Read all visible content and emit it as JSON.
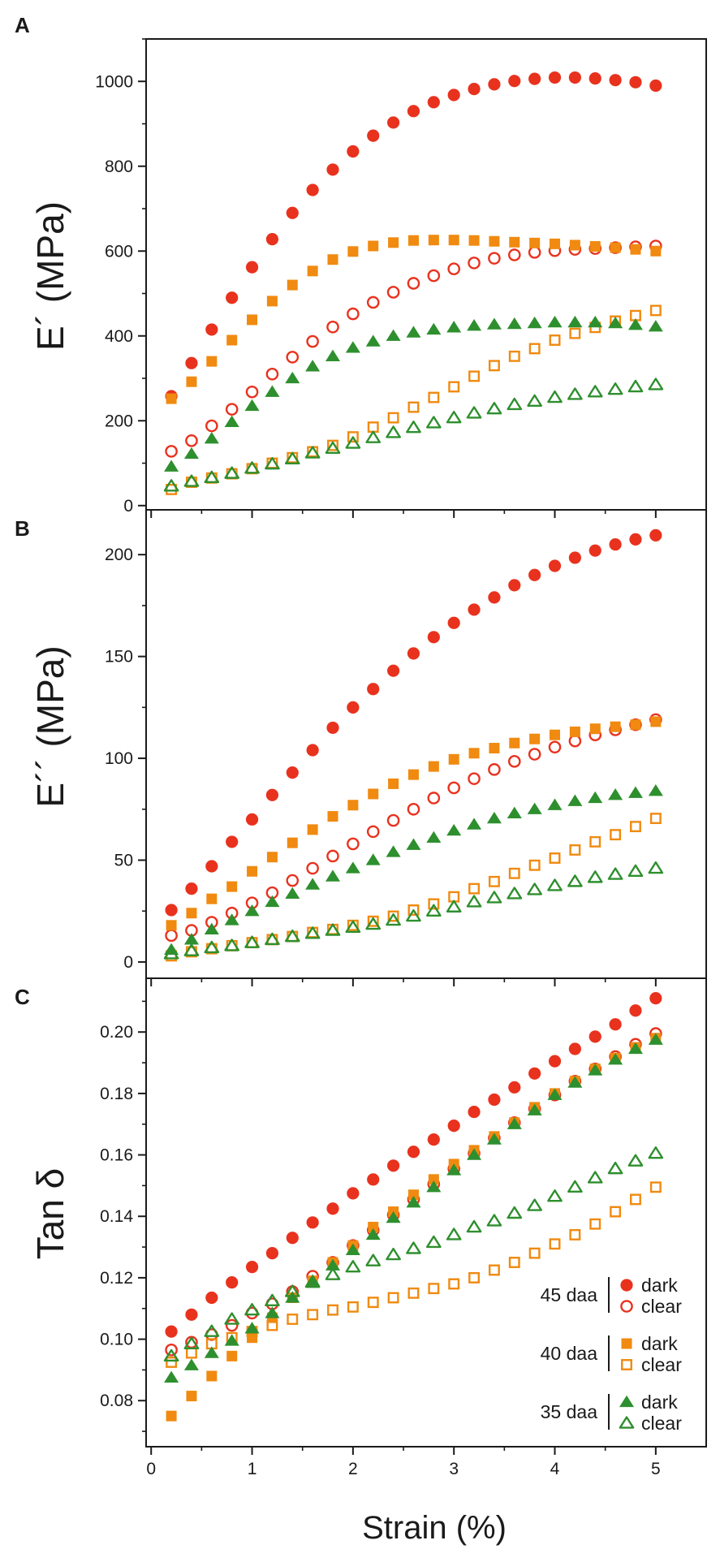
{
  "figure": {
    "x_axis": {
      "label": "Strain (%)",
      "range": [
        -0.05,
        5.5
      ],
      "ticks": [
        0,
        1,
        2,
        3,
        4,
        5
      ],
      "tick_labels": [
        "0",
        "1",
        "2",
        "3",
        "4",
        "5"
      ]
    },
    "colors": {
      "red": "#e8321e",
      "orange": "#f08a10",
      "green": "#2e8f2e",
      "axis": "#1a1a1a"
    },
    "legend": {
      "groups": [
        {
          "label": "45 daa",
          "color": "red",
          "marker": "circle",
          "entries": [
            "dark",
            "clear"
          ]
        },
        {
          "label": "40 daa",
          "color": "orange",
          "marker": "square",
          "entries": [
            "dark",
            "clear"
          ]
        },
        {
          "label": "35 daa",
          "color": "green",
          "marker": "triangle",
          "entries": [
            "dark",
            "clear"
          ]
        }
      ]
    }
  },
  "chart_data": [
    {
      "type": "scatter",
      "panel": "A",
      "ylabel": "E´ (MPa)",
      "ylim": [
        -10,
        1100
      ],
      "yticks": [
        0,
        200,
        400,
        600,
        800,
        1000
      ],
      "ytick_labels": [
        "0",
        "200",
        "400",
        "600",
        "800",
        "1000"
      ],
      "yminor": [
        100,
        300,
        500,
        700,
        900,
        1100
      ],
      "x": [
        0.2,
        0.4,
        0.6,
        0.8,
        1.0,
        1.2,
        1.4,
        1.6,
        1.8,
        2.0,
        2.2,
        2.4,
        2.6,
        2.8,
        3.0,
        3.2,
        3.4,
        3.6,
        3.8,
        4.0,
        4.2,
        4.4,
        4.6,
        4.8,
        5.0
      ],
      "series": [
        {
          "name": "45 daa dark",
          "color": "red",
          "marker": "circle",
          "filled": true,
          "values": [
            258,
            336,
            415,
            490,
            562,
            628,
            690,
            744,
            792,
            835,
            872,
            903,
            930,
            951,
            968,
            982,
            993,
            1001,
            1006,
            1009,
            1009,
            1007,
            1003,
            998,
            990
          ]
        },
        {
          "name": "45 daa clear",
          "color": "red",
          "marker": "circle",
          "filled": false,
          "values": [
            128,
            153,
            188,
            227,
            268,
            310,
            350,
            387,
            421,
            452,
            479,
            503,
            524,
            542,
            558,
            572,
            583,
            591,
            597,
            601,
            604,
            606,
            608,
            610,
            612
          ]
        },
        {
          "name": "40 daa dark",
          "color": "orange",
          "marker": "square",
          "filled": true,
          "values": [
            252,
            292,
            340,
            390,
            438,
            482,
            520,
            553,
            580,
            599,
            612,
            620,
            625,
            626,
            626,
            625,
            623,
            621,
            619,
            617,
            614,
            611,
            608,
            604,
            600
          ]
        },
        {
          "name": "40 daa clear",
          "color": "orange",
          "marker": "square",
          "filled": false,
          "values": [
            38,
            55,
            65,
            75,
            87,
            100,
            113,
            127,
            142,
            162,
            185,
            207,
            232,
            255,
            280,
            305,
            330,
            352,
            370,
            390,
            406,
            420,
            435,
            448,
            460
          ]
        },
        {
          "name": "35 daa dark",
          "color": "green",
          "marker": "triangle",
          "filled": true,
          "values": [
            92,
            122,
            158,
            197,
            235,
            268,
            300,
            328,
            352,
            372,
            387,
            400,
            408,
            415,
            420,
            424,
            427,
            428,
            430,
            432,
            432,
            432,
            430,
            426,
            422
          ]
        },
        {
          "name": "35 daa clear",
          "color": "green",
          "marker": "triangle",
          "filled": false,
          "values": [
            46,
            57,
            66,
            76,
            88,
            98,
            110,
            124,
            135,
            147,
            160,
            172,
            184,
            195,
            207,
            218,
            228,
            238,
            246,
            255,
            262,
            268,
            274,
            280,
            285
          ]
        }
      ]
    },
    {
      "type": "scatter",
      "panel": "B",
      "ylabel": "E´´ (MPa)",
      "ylim": [
        -8,
        222
      ],
      "yticks": [
        0,
        50,
        100,
        150,
        200
      ],
      "ytick_labels": [
        "0",
        "50",
        "100",
        "150",
        "200"
      ],
      "yminor": [
        25,
        75,
        125,
        175
      ],
      "x": [
        0.2,
        0.4,
        0.6,
        0.8,
        1.0,
        1.2,
        1.4,
        1.6,
        1.8,
        2.0,
        2.2,
        2.4,
        2.6,
        2.8,
        3.0,
        3.2,
        3.4,
        3.6,
        3.8,
        4.0,
        4.2,
        4.4,
        4.6,
        4.8,
        5.0
      ],
      "series": [
        {
          "name": "45 daa dark",
          "color": "red",
          "marker": "circle",
          "filled": true,
          "values": [
            25.5,
            36,
            47,
            59,
            70,
            82,
            93,
            104,
            115,
            125,
            134,
            143,
            151.5,
            159.5,
            166.5,
            173,
            179,
            185,
            190,
            194.5,
            198.5,
            202,
            205,
            207.5,
            209.5
          ]
        },
        {
          "name": "45 daa clear",
          "color": "red",
          "marker": "circle",
          "filled": false,
          "values": [
            13,
            15.5,
            19.5,
            24,
            29,
            34,
            40,
            46,
            52,
            58,
            64,
            69.5,
            75,
            80.5,
            85.5,
            90,
            94.5,
            98.5,
            102,
            105.5,
            108.5,
            111.5,
            114,
            116.5,
            119
          ]
        },
        {
          "name": "40 daa dark",
          "color": "orange",
          "marker": "square",
          "filled": true,
          "values": [
            18,
            24,
            31,
            37,
            44.5,
            51.5,
            58.5,
            65,
            71.5,
            77,
            82.5,
            87.5,
            92,
            96,
            99.5,
            102.5,
            105,
            107.5,
            109.5,
            111.5,
            113,
            114.5,
            115.5,
            116.5,
            118
          ]
        },
        {
          "name": "40 daa clear",
          "color": "orange",
          "marker": "square",
          "filled": false,
          "values": [
            3,
            5,
            6.5,
            8,
            9.5,
            11,
            12.5,
            14.5,
            16,
            18,
            20,
            22.5,
            25.5,
            28.5,
            32,
            36,
            39.5,
            43.5,
            47.5,
            51,
            55,
            59,
            62.5,
            66.5,
            70.5
          ]
        },
        {
          "name": "35 daa dark",
          "color": "green",
          "marker": "triangle",
          "filled": true,
          "values": [
            6,
            11,
            16,
            20.5,
            25,
            29.5,
            33.5,
            38,
            42,
            46,
            50,
            54,
            57.5,
            61,
            64.5,
            67.5,
            70.5,
            73,
            75,
            77,
            79,
            80.5,
            82,
            83,
            84
          ]
        },
        {
          "name": "35 daa clear",
          "color": "green",
          "marker": "triangle",
          "filled": false,
          "values": [
            4,
            5.5,
            7,
            8,
            9.5,
            11,
            12.5,
            14,
            15.5,
            17,
            18.5,
            20.5,
            22.5,
            25,
            27,
            29.5,
            31.5,
            33.5,
            35.5,
            37.5,
            39.5,
            41.5,
            43,
            44.5,
            46
          ]
        }
      ]
    },
    {
      "type": "scatter",
      "panel": "C",
      "ylabel": "Tan δ",
      "ylim": [
        0.065,
        0.2175
      ],
      "yticks": [
        0.08,
        0.1,
        0.12,
        0.14,
        0.16,
        0.18,
        0.2
      ],
      "ytick_labels": [
        "0.08",
        "0.10",
        "0.12",
        "0.14",
        "0.16",
        "0.18",
        "0.20"
      ],
      "yminor": [
        0.07,
        0.09,
        0.11,
        0.13,
        0.15,
        0.17,
        0.19,
        0.21
      ],
      "x": [
        0.2,
        0.4,
        0.6,
        0.8,
        1.0,
        1.2,
        1.4,
        1.6,
        1.8,
        2.0,
        2.2,
        2.4,
        2.6,
        2.8,
        3.0,
        3.2,
        3.4,
        3.6,
        3.8,
        4.0,
        4.2,
        4.4,
        4.6,
        4.8,
        5.0
      ],
      "series": [
        {
          "name": "45 daa dark",
          "color": "red",
          "marker": "circle",
          "filled": true,
          "values": [
            0.1025,
            0.108,
            0.1135,
            0.1185,
            0.1235,
            0.128,
            0.133,
            0.138,
            0.1425,
            0.1475,
            0.152,
            0.1565,
            0.161,
            0.165,
            0.1695,
            0.174,
            0.178,
            0.182,
            0.1865,
            0.1905,
            0.1945,
            0.1985,
            0.2025,
            0.207,
            0.211
          ]
        },
        {
          "name": "45 daa clear",
          "color": "red",
          "marker": "circle",
          "filled": false,
          "values": [
            0.0965,
            0.099,
            0.1015,
            0.1045,
            0.1085,
            0.1115,
            0.1155,
            0.1205,
            0.125,
            0.1305,
            0.1355,
            0.1405,
            0.1455,
            0.1505,
            0.1555,
            0.1605,
            0.1655,
            0.1705,
            0.175,
            0.1795,
            0.184,
            0.188,
            0.192,
            0.196,
            0.1995
          ]
        },
        {
          "name": "40 daa dark",
          "color": "orange",
          "marker": "square",
          "filled": true,
          "values": [
            0.075,
            0.0815,
            0.088,
            0.0945,
            0.1005,
            0.107,
            0.1135,
            0.119,
            0.125,
            0.1305,
            0.1365,
            0.1415,
            0.147,
            0.152,
            0.157,
            0.1615,
            0.166,
            0.1705,
            0.1755,
            0.18,
            0.184,
            0.188,
            0.1915,
            0.195,
            0.198
          ]
        },
        {
          "name": "40 daa clear",
          "color": "orange",
          "marker": "square",
          "filled": false,
          "values": [
            0.0925,
            0.0955,
            0.0985,
            0.1005,
            0.1025,
            0.1045,
            0.1065,
            0.108,
            0.1095,
            0.1105,
            0.112,
            0.1135,
            0.115,
            0.1165,
            0.118,
            0.12,
            0.1225,
            0.125,
            0.128,
            0.131,
            0.134,
            0.1375,
            0.1415,
            0.1455,
            0.1495
          ]
        },
        {
          "name": "35 daa dark",
          "color": "green",
          "marker": "triangle",
          "filled": true,
          "values": [
            0.0875,
            0.0915,
            0.0955,
            0.0995,
            0.1035,
            0.1085,
            0.1135,
            0.119,
            0.124,
            0.129,
            0.134,
            0.1395,
            0.1445,
            0.1495,
            0.155,
            0.16,
            0.165,
            0.17,
            0.1745,
            0.1795,
            0.1835,
            0.1875,
            0.191,
            0.1945,
            0.1975
          ]
        },
        {
          "name": "35 daa clear",
          "color": "green",
          "marker": "triangle",
          "filled": false,
          "values": [
            0.0945,
            0.0985,
            0.1025,
            0.1065,
            0.1095,
            0.1125,
            0.1155,
            0.1185,
            0.121,
            0.1235,
            0.1255,
            0.1275,
            0.1295,
            0.1315,
            0.134,
            0.1365,
            0.1385,
            0.141,
            0.1435,
            0.1465,
            0.1495,
            0.1525,
            0.1555,
            0.158,
            0.1605
          ]
        }
      ]
    }
  ]
}
